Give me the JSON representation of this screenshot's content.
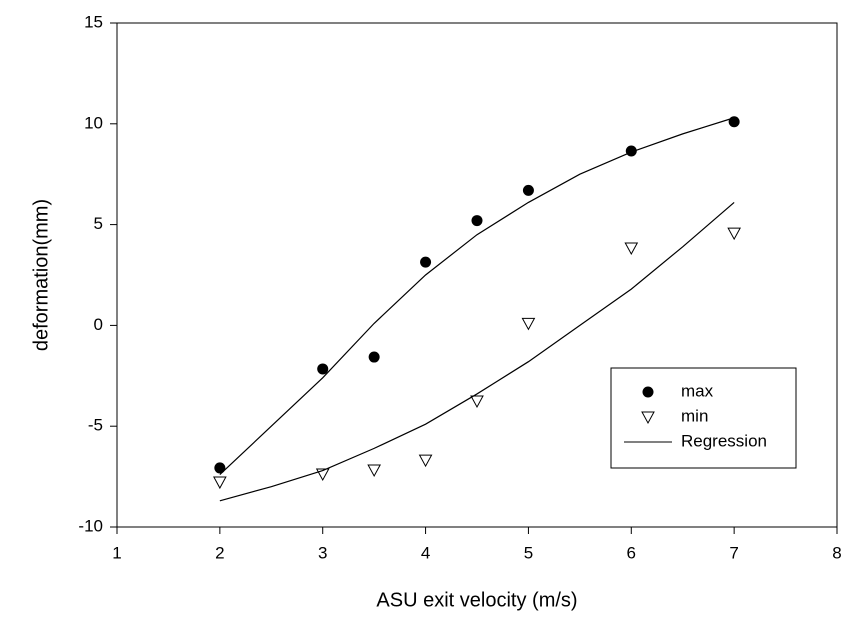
{
  "chart_data": {
    "type": "scatter",
    "x_label": "ASU exit velocity (m/s)",
    "y_label": "deformation(mm)",
    "xlim": [
      1,
      8
    ],
    "xticks": [
      1,
      2,
      3,
      4,
      5,
      6,
      7,
      8
    ],
    "ylim": [
      -10,
      15
    ],
    "yticks": [
      -10,
      -5,
      0,
      5,
      10,
      15
    ],
    "legend": "lower right",
    "series": [
      {
        "name": "max",
        "color": "#000000",
        "marker": "filled-circle",
        "x": [
          2,
          3,
          3.5,
          4,
          4.5,
          5,
          6,
          7
        ],
        "values": [
          -7.07,
          -2.16,
          -1.57,
          3.14,
          5.2,
          6.7,
          8.65,
          10.1
        ]
      },
      {
        "name": "min",
        "color": "#000000",
        "marker": "open-triangle-down",
        "x": [
          2,
          3,
          3.5,
          4,
          4.5,
          5,
          6,
          7
        ],
        "values": [
          -7.77,
          -7.37,
          -7.17,
          -6.68,
          -3.75,
          0.1,
          3.84,
          4.58
        ]
      },
      {
        "name": "Regression",
        "color": "#000000",
        "marker": "line",
        "curves": [
          {
            "x": [
              2,
              2.5,
              3,
              3.5,
              4,
              4.5,
              5,
              5.5,
              6,
              6.5,
              7
            ],
            "values": [
              -7.4,
              -5.0,
              -2.6,
              0.1,
              2.5,
              4.5,
              6.1,
              7.5,
              8.6,
              9.5,
              10.3
            ]
          },
          {
            "x": [
              2,
              2.5,
              3,
              3.5,
              4,
              4.5,
              5,
              5.5,
              6,
              6.5,
              7
            ],
            "values": [
              -8.7,
              -8.0,
              -7.2,
              -6.1,
              -4.9,
              -3.4,
              -1.8,
              0.0,
              1.8,
              3.9,
              6.1
            ]
          }
        ]
      }
    ]
  }
}
